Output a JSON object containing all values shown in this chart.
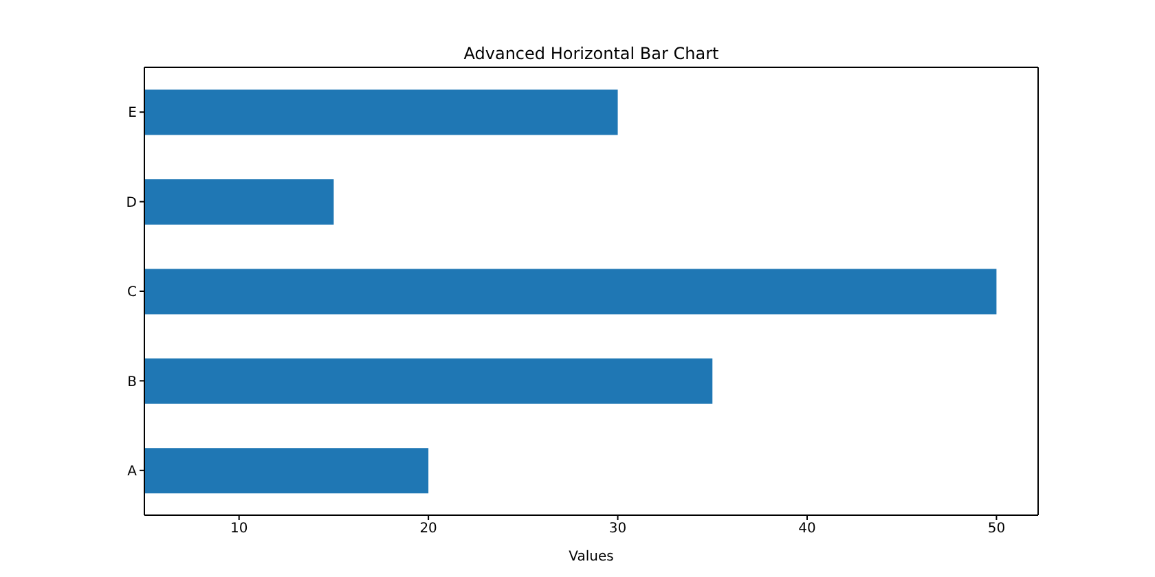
{
  "chart_data": {
    "type": "bar",
    "orientation": "horizontal",
    "title": "Advanced Horizontal Bar Chart",
    "xlabel": "Values",
    "categories": [
      "E",
      "D",
      "C",
      "B",
      "A"
    ],
    "values": [
      30,
      15,
      50,
      35,
      20
    ],
    "color": "#1f77b4",
    "xlim": [
      5,
      52.2
    ],
    "xticks": [
      10,
      20,
      30,
      40,
      50
    ]
  }
}
